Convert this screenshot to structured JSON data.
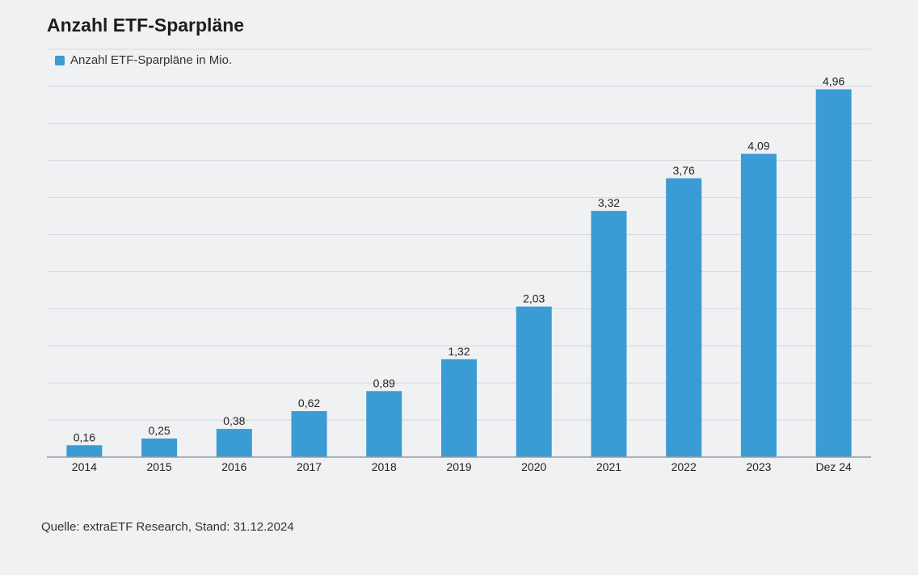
{
  "chart_data": {
    "type": "bar",
    "title": "Anzahl ETF-Sparpläne",
    "categories": [
      "2014",
      "2015",
      "2016",
      "2017",
      "2018",
      "2019",
      "2020",
      "2021",
      "2022",
      "2023",
      "Dez 24"
    ],
    "series": [
      {
        "name": "Anzahl ETF-Sparpläne in Mio.",
        "values": [
          0.16,
          0.25,
          0.38,
          0.62,
          0.89,
          1.32,
          2.03,
          3.32,
          3.76,
          4.09,
          4.96
        ],
        "labels": [
          "0,16",
          "0,25",
          "0,38",
          "0,62",
          "0,89",
          "1,32",
          "2,03",
          "3,32",
          "3,76",
          "4,09",
          "4,96"
        ],
        "color": "#3a9bd5"
      }
    ],
    "xlabel": "",
    "ylabel": "",
    "ylim": [
      0,
      5.5
    ],
    "gridlines": [
      0.5,
      1.0,
      1.5,
      2.0,
      2.5,
      3.0,
      3.5,
      4.0,
      4.5,
      5.0,
      5.5
    ],
    "y_tick_labels_visible": false,
    "grid": true,
    "legend_position": "top-left"
  },
  "source": "Quelle: extraETF Research, Stand: 31.12.2024",
  "colors": {
    "bar": "#3a9bd5",
    "grid": "#d4d6da",
    "axis": "#9a9ca0",
    "background": "#f0f1f3"
  }
}
